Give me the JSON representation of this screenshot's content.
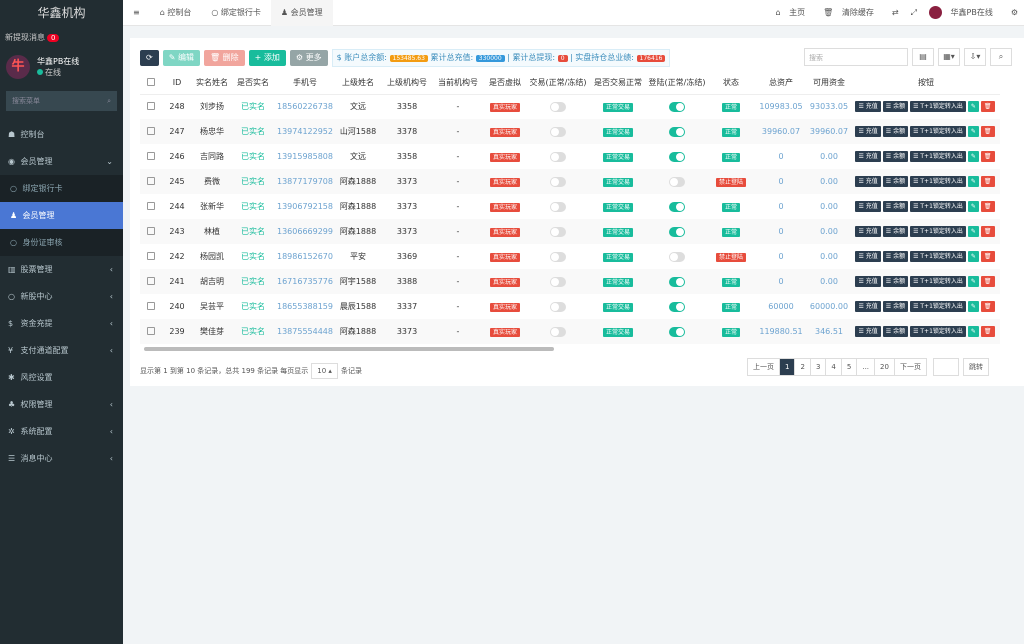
{
  "sidebar": {
    "brand": "华鑫机构",
    "new_msg": "新提现消息",
    "new_msg_count": "0",
    "user_name": "华鑫PB在线",
    "user_status": "在线",
    "search_placeholder": "搜索菜单",
    "items": [
      {
        "label": "控制台",
        "icon": "dashboard-icon",
        "arrow": ""
      },
      {
        "label": "会员管理",
        "icon": "user-circle-icon",
        "arrow": "⌄"
      },
      {
        "label": "绑定银行卡",
        "icon": "circle-icon",
        "sub": true
      },
      {
        "label": "会员管理",
        "icon": "user-icon",
        "sub": true,
        "active": true
      },
      {
        "label": "身份证审核",
        "icon": "circle-icon",
        "sub": true
      },
      {
        "label": "股票管理",
        "icon": "bank-icon",
        "arrow": "‹"
      },
      {
        "label": "新股中心",
        "icon": "circle-icon",
        "arrow": "‹"
      },
      {
        "label": "资金充提",
        "icon": "dollar-icon",
        "arrow": "‹"
      },
      {
        "label": "支付通道配置",
        "icon": "yen-icon",
        "arrow": "‹"
      },
      {
        "label": "风控设置",
        "icon": "gear-icon",
        "arrow": ""
      },
      {
        "label": "权限管理",
        "icon": "group-icon",
        "arrow": "‹"
      },
      {
        "label": "系统配置",
        "icon": "cog-icon",
        "arrow": "‹"
      },
      {
        "label": "消息中心",
        "icon": "list-icon",
        "arrow": "‹"
      }
    ]
  },
  "header": {
    "tabs": [
      "控制台",
      "绑定银行卡",
      "会员管理"
    ],
    "home": "主页",
    "clear_cache": "清除缓存",
    "user": "华鑫PB在线"
  },
  "toolbar": {
    "edit": "编辑",
    "delete": "删除",
    "add": "添加",
    "more": "更多",
    "balance_label": "$ 账户总余额:",
    "balance": "153485.63",
    "recharge_label": "累计总充值:",
    "recharge": "330000",
    "withdraw_label": "累计总提现:",
    "withdraw": "0",
    "perf_label": "实盘持仓总业绩:",
    "perf": "176416",
    "search_placeholder": "搜索"
  },
  "table": {
    "headers": [
      "ID",
      "实名姓名",
      "是否实名",
      "手机号",
      "上级姓名",
      "上级机构号",
      "当前机构号",
      "是否虚拟",
      "交易(正常/冻结)",
      "是否交易正常",
      "登陆(正常/冻结)",
      "状态",
      "总资产",
      "可用资金",
      "按钮"
    ],
    "rows": [
      {
        "id": "248",
        "name": "刘步扬",
        "real": "已实名",
        "phone": "18560226738",
        "parent": "文远",
        "org": "3358",
        "cur": "-",
        "virtual": "真实玩家",
        "trade": false,
        "trade_ok": "正常交易",
        "login": true,
        "status": "正常",
        "total": "109983.05",
        "avail": "93033.05"
      },
      {
        "id": "247",
        "name": "杨忠华",
        "real": "已实名",
        "phone": "13974122952",
        "parent": "山河1588",
        "org": "3378",
        "cur": "-",
        "virtual": "真实玩家",
        "trade": false,
        "trade_ok": "正常交易",
        "login": true,
        "status": "正常",
        "total": "39960.07",
        "avail": "39960.07"
      },
      {
        "id": "246",
        "name": "吉同路",
        "real": "已实名",
        "phone": "13915985808",
        "parent": "文远",
        "org": "3358",
        "cur": "-",
        "virtual": "真实玩家",
        "trade": false,
        "trade_ok": "正常交易",
        "login": true,
        "status": "正常",
        "total": "0",
        "avail": "0.00"
      },
      {
        "id": "245",
        "name": "费微",
        "real": "已实名",
        "phone": "13877179708",
        "parent": "阿森1888",
        "org": "3373",
        "cur": "-",
        "virtual": "真实玩家",
        "trade": false,
        "trade_ok": "正常交易",
        "login": false,
        "status": "禁止登陆",
        "total": "0",
        "avail": "0.00"
      },
      {
        "id": "244",
        "name": "张新华",
        "real": "已实名",
        "phone": "13906792158",
        "parent": "阿森1888",
        "org": "3373",
        "cur": "-",
        "virtual": "真实玩家",
        "trade": false,
        "trade_ok": "正常交易",
        "login": true,
        "status": "正常",
        "total": "0",
        "avail": "0.00"
      },
      {
        "id": "243",
        "name": "林植",
        "real": "已实名",
        "phone": "13606669299",
        "parent": "阿森1888",
        "org": "3373",
        "cur": "-",
        "virtual": "真实玩家",
        "trade": false,
        "trade_ok": "正常交易",
        "login": true,
        "status": "正常",
        "total": "0",
        "avail": "0.00"
      },
      {
        "id": "242",
        "name": "杨园凯",
        "real": "已实名",
        "phone": "18986152670",
        "parent": "平安",
        "org": "3369",
        "cur": "-",
        "virtual": "真实玩家",
        "trade": false,
        "trade_ok": "正常交易",
        "login": false,
        "status": "禁止登陆",
        "total": "0",
        "avail": "0.00"
      },
      {
        "id": "241",
        "name": "胡吉明",
        "real": "已实名",
        "phone": "16716735776",
        "parent": "阿宇1588",
        "org": "3388",
        "cur": "-",
        "virtual": "真实玩家",
        "trade": false,
        "trade_ok": "正常交易",
        "login": true,
        "status": "正常",
        "total": "0",
        "avail": "0.00"
      },
      {
        "id": "240",
        "name": "吴芸平",
        "real": "已实名",
        "phone": "18655388159",
        "parent": "晨辰1588",
        "org": "3337",
        "cur": "-",
        "virtual": "真实玩家",
        "trade": false,
        "trade_ok": "正常交易",
        "login": true,
        "status": "正常",
        "total": "60000",
        "avail": "60000.00"
      },
      {
        "id": "239",
        "name": "樊佳芽",
        "real": "已实名",
        "phone": "13875554448",
        "parent": "阿森1888",
        "org": "3373",
        "cur": "-",
        "virtual": "真实玩家",
        "trade": false,
        "trade_ok": "正常交易",
        "login": true,
        "status": "正常",
        "total": "119880.51",
        "avail": "346.51"
      }
    ],
    "actions": [
      "充值",
      "余额",
      "T+1锁定转入出"
    ]
  },
  "footer": {
    "summary": "显示第 1 到第 10 条记录，总共 199 条记录 每页显示",
    "per_page": "10 ▴",
    "suffix": "条记录"
  },
  "pager": {
    "prev": "上一页",
    "pages": [
      "1",
      "2",
      "3",
      "4",
      "5",
      "...",
      "20"
    ],
    "next": "下一页",
    "jump": "跳转",
    "current": "1"
  },
  "colors": {
    "sidebar": "#222d32",
    "active": "#4a77d4",
    "green": "#18bc9c",
    "red": "#e74c3c",
    "navy": "#2c3e50"
  }
}
